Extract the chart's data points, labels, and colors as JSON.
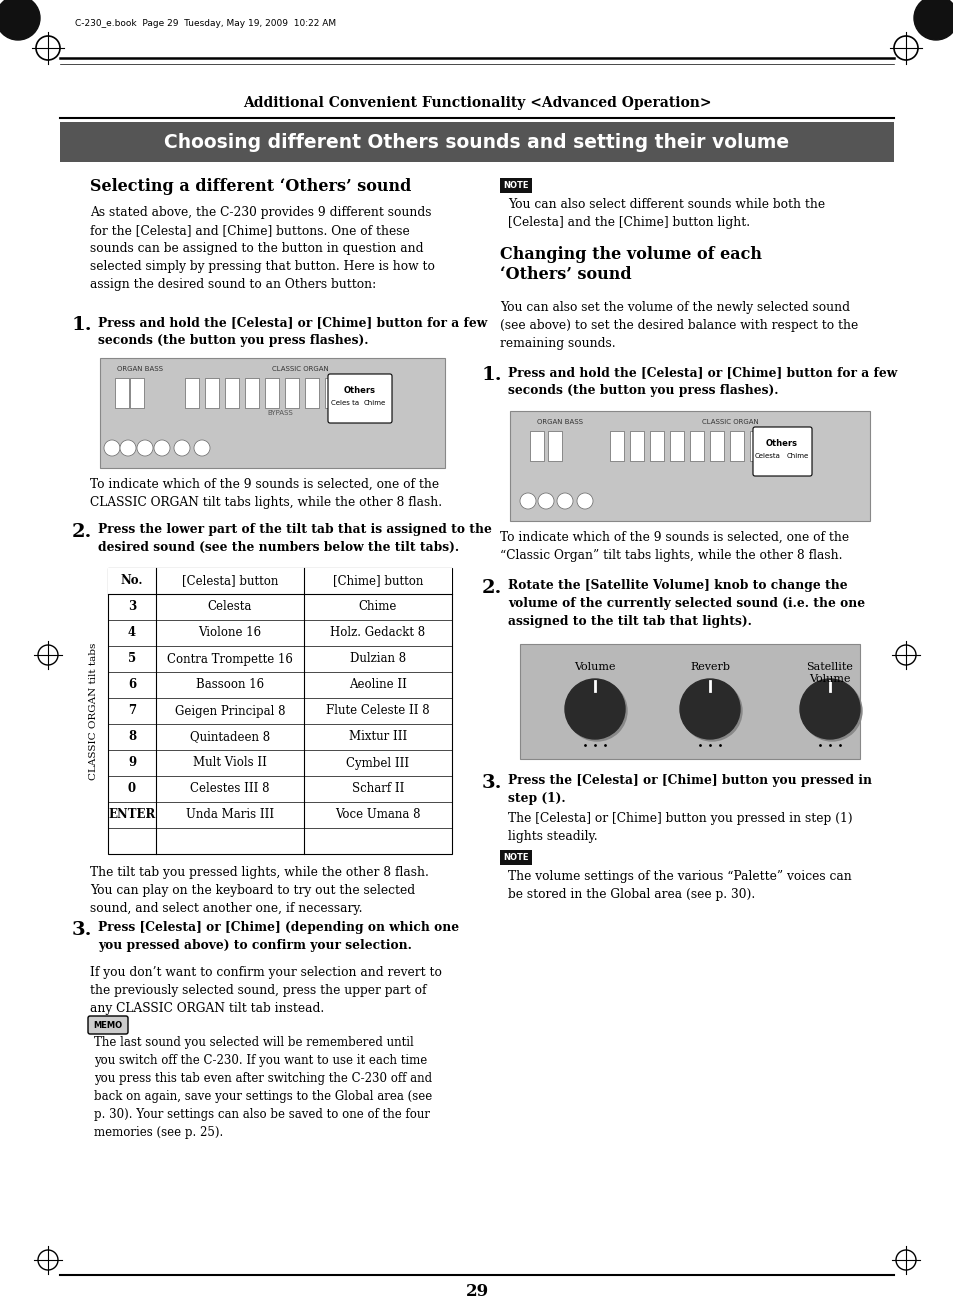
{
  "page_header": "Additional Convenient Functionality <Advanced Operation>",
  "section_title": "Choosing different Others sounds and setting their volume",
  "left_col": {
    "heading1": "Selecting a different ‘Others’ sound",
    "para1": "As stated above, the C-230 provides 9 different sounds\nfor the [Celesta] and [Chime] buttons. One of these\nsounds can be assigned to the button in question and\nselected simply by pressing that button. Here is how to\nassign the desired sound to an Others button:",
    "step1_bold": "Press and hold the [Celesta] or [Chime] button for a few\nseconds (the button you press flashes).",
    "step1_note_after": "To indicate which of the 9 sounds is selected, one of the\nCLASSIC ORGAN tilt tabs lights, while the other 8 flash.",
    "step2_bold": "Press the lower part of the tilt tab that is assigned to the\ndesired sound (see the numbers below the tilt tabs).",
    "table_header": [
      "No.",
      "[Celesta] button",
      "[Chime] button"
    ],
    "table_rows": [
      [
        "3",
        "Celesta",
        "Chime"
      ],
      [
        "4",
        "Violone 16",
        "Holz. Gedackt 8"
      ],
      [
        "5",
        "Contra Trompette 16",
        "Dulzian 8"
      ],
      [
        "6",
        "Bassoon 16",
        "Aeoline II"
      ],
      [
        "7",
        "Geigen Principal 8",
        "Flute Celeste II 8"
      ],
      [
        "8",
        "Quintadeen 8",
        "Mixtur III"
      ],
      [
        "9",
        "Mult Viols II",
        "Cymbel III"
      ],
      [
        "0",
        "Celestes III 8",
        "Scharf II"
      ],
      [
        "ENTER",
        "Unda Maris III",
        "Voce Umana 8"
      ]
    ],
    "table_side_label": "CLASSIC ORGAN tilt tabs",
    "step2_note_after": "The tilt tab you pressed lights, while the other 8 flash.\nYou can play on the keyboard to try out the selected\nsound, and select another one, if necessary.",
    "step3_bold": "Press [Celesta] or [Chime] (depending on which one\nyou pressed above) to confirm your selection.",
    "step3_text": "If you don’t want to confirm your selection and revert to\nthe previously selected sound, press the upper part of\nany CLASSIC ORGAN tilt tab instead.",
    "memo_text": "The last sound you selected will be remembered until\nyou switch off the C-230. If you want to use it each time\nyou press this tab even after switching the C-230 off and\nback on again, save your settings to the Global area (see\np. 30). Your settings can also be saved to one of the four\nmemories (see p. 25)."
  },
  "right_col": {
    "note_text": "You can also select different sounds while both the\n[Celesta] and the [Chime] button light.",
    "heading2": "Changing the volume of each\n‘Others’ sound",
    "para2": "You can also set the volume of the newly selected sound\n(see above) to set the desired balance with respect to the\nremaining sounds.",
    "step1_bold": "Press and hold the [Celesta] or [Chime] button for a few\nseconds (the button you press flashes).",
    "step1_note_after": "To indicate which of the 9 sounds is selected, one of the\n“Classic Organ” tilt tabs lights, while the other 8 flash.",
    "step2_bold": "Rotate the [Satellite Volume] knob to change the\nvolume of the currently selected sound (i.e. the one\nassigned to the tilt tab that lights).",
    "step3_bold": "Press the [Celesta] or [Chime] button you pressed in\nstep (1).",
    "step3_text": "The [Celesta] or [Chime] button you pressed in step (1)\nlights steadily.",
    "note2_text": "The volume settings of the various “Palette” voices can\nbe stored in the Global area (see p. 30)."
  },
  "page_number": "29",
  "top_text": "C-230_e.book  Page 29  Tuesday, May 19, 2009  10:22 AM",
  "bg_color": "#ffffff",
  "title_bar_color": "#555555",
  "note_bg": "#333333"
}
